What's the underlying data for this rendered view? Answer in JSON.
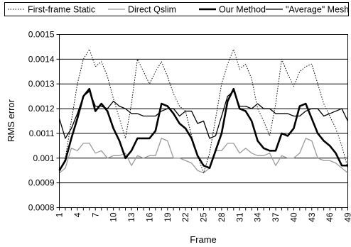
{
  "chart_data": {
    "type": "line",
    "title": "",
    "xlabel": "Frame",
    "ylabel": "RMS error",
    "ylim": [
      0.0008,
      0.0015
    ],
    "yticks": [
      "0.0008",
      "0.0009",
      "0.001",
      "0.0011",
      "0.0012",
      "0.0013",
      "0.0014",
      "0.0015"
    ],
    "xtick_labels": [
      "1",
      "4",
      "7",
      "10",
      "13",
      "16",
      "19",
      "22",
      "25",
      "28",
      "31",
      "34",
      "37",
      "40",
      "43",
      "46",
      "49"
    ],
    "x_range": [
      1,
      49
    ],
    "grid": "horizontal",
    "legend_position": "top",
    "x": [
      1,
      2,
      3,
      4,
      5,
      6,
      7,
      8,
      9,
      10,
      11,
      12,
      13,
      14,
      15,
      16,
      17,
      18,
      19,
      20,
      21,
      22,
      23,
      24,
      25,
      26,
      27,
      28,
      29,
      30,
      31,
      32,
      33,
      34,
      35,
      36,
      37,
      38,
      39,
      40,
      41,
      42,
      43,
      44,
      45,
      46,
      47,
      48,
      49
    ],
    "series": [
      {
        "name": "First-frame Static",
        "style": "dotted",
        "color": "#000000",
        "values": [
          0.00094,
          0.001,
          0.00115,
          0.0013,
          0.0014,
          0.00144,
          0.00137,
          0.00139,
          0.00133,
          0.00124,
          0.00116,
          0.00108,
          0.00122,
          0.0014,
          0.00135,
          0.0013,
          0.00135,
          0.00139,
          0.00133,
          0.00126,
          0.00121,
          0.00119,
          0.00109,
          0.00101,
          0.00094,
          0.00102,
          0.00116,
          0.0013,
          0.00138,
          0.00144,
          0.00136,
          0.00138,
          0.00132,
          0.0012,
          0.00115,
          0.00109,
          0.00122,
          0.0014,
          0.00134,
          0.00129,
          0.00135,
          0.00137,
          0.00138,
          0.0013,
          0.00122,
          0.00117,
          0.00112,
          0.00105,
          0.00096
        ]
      },
      {
        "name": "Direct Qslim",
        "style": "solid",
        "color": "#9a9a9a",
        "values": [
          0.00094,
          0.00096,
          0.00104,
          0.00103,
          0.00106,
          0.00106,
          0.00102,
          0.00103,
          0.001,
          0.00101,
          0.00101,
          0.00102,
          0.00097,
          0.00101,
          0.001,
          0.00101,
          0.00101,
          0.00108,
          0.00107,
          0.001,
          0.001,
          0.00099,
          0.00098,
          0.00095,
          0.00094,
          0.00096,
          0.00103,
          0.00103,
          0.00106,
          0.00106,
          0.00102,
          0.00104,
          0.00102,
          0.00101,
          0.00101,
          0.00102,
          0.00097,
          0.00101,
          0.001,
          0.001,
          0.00102,
          0.00108,
          0.00107,
          0.001,
          0.00099,
          0.00099,
          0.00098,
          0.00096,
          0.00094
        ]
      },
      {
        "name": "Our Method",
        "style": "thick",
        "color": "#000000",
        "values": [
          0.00095,
          0.00099,
          0.00108,
          0.00116,
          0.00125,
          0.00128,
          0.00119,
          0.00122,
          0.00119,
          0.00112,
          0.00107,
          0.001,
          0.00103,
          0.00108,
          0.00108,
          0.00108,
          0.00111,
          0.00122,
          0.00121,
          0.00118,
          0.00114,
          0.00112,
          0.00108,
          0.00101,
          0.00097,
          0.00096,
          0.00103,
          0.0011,
          0.00123,
          0.00128,
          0.0012,
          0.00119,
          0.00115,
          0.00107,
          0.00104,
          0.00103,
          0.00103,
          0.0011,
          0.00109,
          0.00112,
          0.00121,
          0.00122,
          0.00116,
          0.0011,
          0.00107,
          0.00105,
          0.00102,
          0.00097,
          0.00097
        ]
      },
      {
        "name": "\"Average\" Mesh",
        "style": "solid",
        "color": "#000000",
        "values": [
          0.00116,
          0.00108,
          0.00112,
          0.00118,
          0.00125,
          0.00127,
          0.00121,
          0.00121,
          0.0012,
          0.00123,
          0.00121,
          0.0012,
          0.00118,
          0.00118,
          0.00117,
          0.00117,
          0.00117,
          0.00119,
          0.0012,
          0.0012,
          0.00117,
          0.00119,
          0.00119,
          0.00114,
          0.00115,
          0.00108,
          0.00109,
          0.00117,
          0.00125,
          0.00127,
          0.00121,
          0.00121,
          0.0012,
          0.00122,
          0.0012,
          0.0012,
          0.00118,
          0.00118,
          0.00118,
          0.00117,
          0.00117,
          0.00119,
          0.0012,
          0.0012,
          0.00117,
          0.00118,
          0.00119,
          0.0012,
          0.00115
        ]
      }
    ]
  }
}
